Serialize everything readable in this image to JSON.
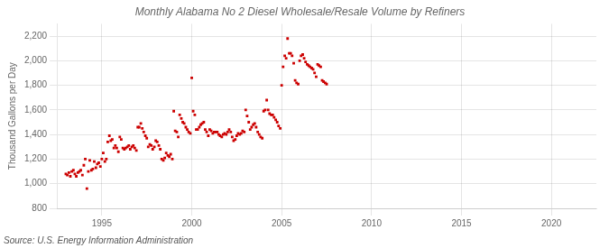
{
  "chart_data": {
    "type": "scatter",
    "title": "Monthly Alabama No 2 Diesel Wholesale/Resale Volume by Refiners",
    "ylabel": "Thousand Gallons per Day",
    "annotations": [
      "Source: U.S. Energy Information Administration"
    ],
    "color": "#cc0000",
    "marker": "square",
    "grid": true,
    "xlim": [
      1992.5,
      2022.5
    ],
    "ylim": [
      800,
      2300
    ],
    "xticks": [
      1995,
      2000,
      2005,
      2010,
      2015,
      2020
    ],
    "yticks": [
      800,
      {
        "value": 1000,
        "label": "1,000"
      },
      {
        "value": 1200,
        "label": "1,200"
      },
      {
        "value": 1400,
        "label": "1,400"
      },
      {
        "value": 1600,
        "label": "1,600"
      },
      {
        "value": 1800,
        "label": "1,800"
      },
      {
        "value": 2000,
        "label": "2,000"
      },
      {
        "value": 2200,
        "label": "2,200"
      }
    ],
    "x": [
      1993.0,
      1993.08,
      1993.17,
      1993.25,
      1993.33,
      1993.42,
      1993.5,
      1993.58,
      1993.67,
      1993.75,
      1993.83,
      1993.92,
      1994.0,
      1994.08,
      1994.17,
      1994.25,
      1994.33,
      1994.42,
      1994.5,
      1994.58,
      1994.67,
      1994.75,
      1994.83,
      1994.92,
      1995.0,
      1995.08,
      1995.17,
      1995.25,
      1995.33,
      1995.42,
      1995.5,
      1995.58,
      1995.67,
      1995.75,
      1995.83,
      1995.92,
      1996.0,
      1996.08,
      1996.17,
      1996.25,
      1996.33,
      1996.42,
      1996.5,
      1996.58,
      1996.67,
      1996.75,
      1996.83,
      1996.92,
      1997.0,
      1997.08,
      1997.17,
      1997.25,
      1997.33,
      1997.42,
      1997.5,
      1997.58,
      1997.67,
      1997.75,
      1997.83,
      1997.92,
      1998.0,
      1998.08,
      1998.17,
      1998.25,
      1998.33,
      1998.42,
      1998.5,
      1998.58,
      1998.67,
      1998.75,
      1998.83,
      1998.92,
      1999.0,
      1999.08,
      1999.17,
      1999.25,
      1999.33,
      1999.42,
      1999.5,
      1999.58,
      1999.67,
      1999.75,
      1999.83,
      1999.92,
      2000.0,
      2000.08,
      2000.17,
      2000.25,
      2000.33,
      2000.42,
      2000.5,
      2000.58,
      2000.67,
      2000.75,
      2000.83,
      2000.92,
      2001.0,
      2001.08,
      2001.17,
      2001.25,
      2001.33,
      2001.42,
      2001.5,
      2001.58,
      2001.67,
      2001.75,
      2001.83,
      2001.92,
      2002.0,
      2002.08,
      2002.17,
      2002.25,
      2002.33,
      2002.42,
      2002.5,
      2002.58,
      2002.67,
      2002.75,
      2002.83,
      2002.92,
      2003.0,
      2003.08,
      2003.17,
      2003.25,
      2003.33,
      2003.42,
      2003.5,
      2003.58,
      2003.67,
      2003.75,
      2003.83,
      2003.92,
      2004.0,
      2004.08,
      2004.17,
      2004.25,
      2004.33,
      2004.42,
      2004.5,
      2004.58,
      2004.67,
      2004.75,
      2004.83,
      2004.92,
      2005.0,
      2005.08,
      2005.17,
      2005.25,
      2005.33,
      2005.42,
      2005.5,
      2005.58,
      2005.67,
      2005.75,
      2005.83,
      2005.92,
      2006.0,
      2006.08,
      2006.17,
      2006.25,
      2006.33,
      2006.42,
      2006.5,
      2006.58,
      2006.67,
      2006.75,
      2006.83,
      2006.92,
      2007.0,
      2007.08,
      2007.17,
      2007.25,
      2007.33,
      2007.42,
      2007.5
    ],
    "values": [
      1080,
      1070,
      1090,
      1060,
      1100,
      1110,
      1080,
      1060,
      1090,
      1100,
      1110,
      1070,
      1150,
      1200,
      960,
      1100,
      1190,
      1110,
      1120,
      1180,
      1130,
      1160,
      1170,
      1140,
      1200,
      1250,
      1180,
      1200,
      1340,
      1390,
      1350,
      1360,
      1290,
      1310,
      1290,
      1260,
      1380,
      1360,
      1290,
      1280,
      1290,
      1300,
      1310,
      1280,
      1300,
      1310,
      1290,
      1270,
      1460,
      1460,
      1490,
      1450,
      1420,
      1390,
      1370,
      1300,
      1320,
      1310,
      1280,
      1300,
      1350,
      1340,
      1310,
      1280,
      1200,
      1190,
      1210,
      1250,
      1230,
      1220,
      1240,
      1200,
      1590,
      1430,
      1420,
      1380,
      1560,
      1530,
      1500,
      1490,
      1460,
      1440,
      1420,
      1410,
      1860,
      1590,
      1560,
      1440,
      1440,
      1460,
      1480,
      1490,
      1500,
      1440,
      1420,
      1390,
      1440,
      1430,
      1410,
      1420,
      1420,
      1420,
      1400,
      1390,
      1380,
      1400,
      1410,
      1400,
      1420,
      1440,
      1420,
      1380,
      1350,
      1360,
      1390,
      1410,
      1400,
      1410,
      1430,
      1420,
      1600,
      1550,
      1500,
      1440,
      1460,
      1480,
      1490,
      1460,
      1420,
      1400,
      1380,
      1370,
      1590,
      1600,
      1680,
      1600,
      1570,
      1560,
      1560,
      1540,
      1520,
      1500,
      1470,
      1450,
      1800,
      1950,
      2040,
      2020,
      2180,
      2060,
      2060,
      2040,
      1980,
      1840,
      1820,
      1810,
      2000,
      2040,
      2050,
      2020,
      1990,
      1970,
      1960,
      1950,
      1940,
      1930,
      1900,
      1870,
      1970,
      1960,
      1950,
      1840,
      1830,
      1820,
      1810
    ]
  }
}
